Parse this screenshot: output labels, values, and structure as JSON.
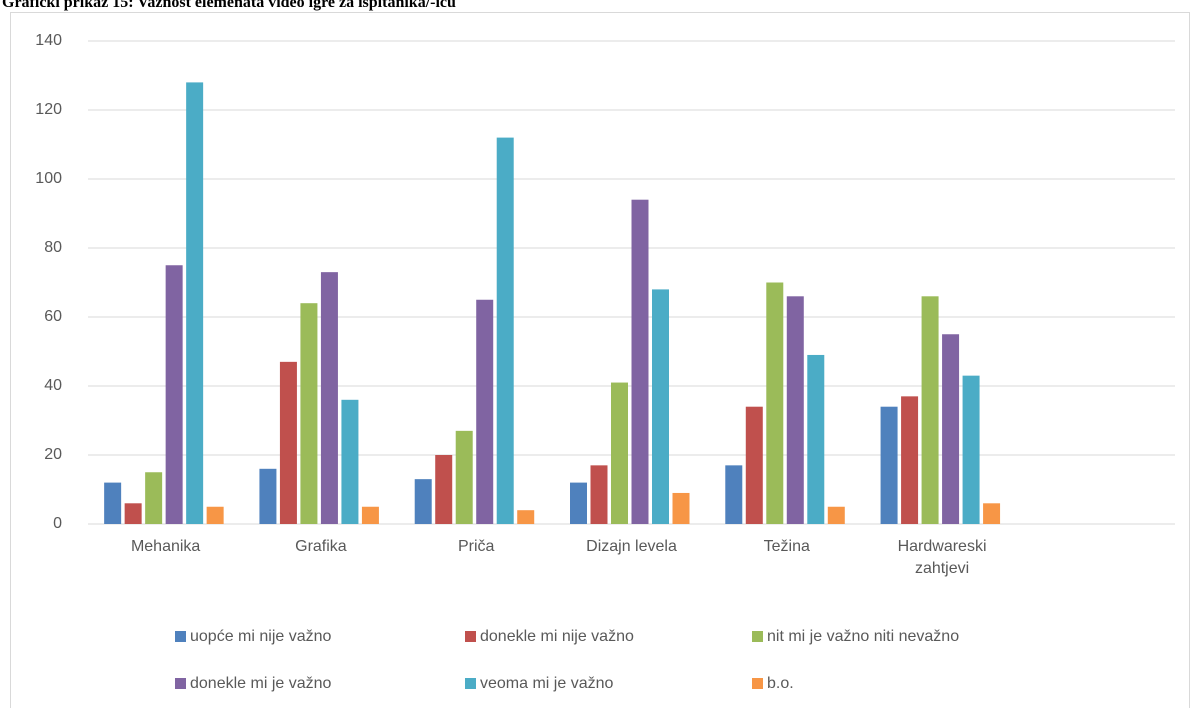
{
  "chart_data": {
    "type": "bar",
    "title": "Grafički prikaz 15: Važnost elemenata video igre za ispitanika/-icu",
    "categories": [
      "Mehanika",
      "Grafika",
      "Priča",
      "Dizajn levela",
      "Težina",
      "Hardwareski zahtjevi",
      null
    ],
    "series": [
      {
        "name": "uopće mi nije važno",
        "color": "#4f81bd",
        "values": [
          12,
          16,
          13,
          12,
          17,
          34,
          null
        ]
      },
      {
        "name": "donekle mi nije važno",
        "color": "#c0504d",
        "values": [
          6,
          47,
          20,
          17,
          34,
          37,
          null
        ]
      },
      {
        "name": "nit mi je važno niti nevažno",
        "color": "#9bbb59",
        "values": [
          15,
          64,
          27,
          41,
          70,
          66,
          null
        ]
      },
      {
        "name": "donekle mi je važno",
        "color": "#8064a2",
        "values": [
          75,
          73,
          65,
          94,
          66,
          55,
          null
        ]
      },
      {
        "name": "veoma mi je važno",
        "color": "#4bacc6",
        "values": [
          128,
          36,
          112,
          68,
          49,
          43,
          null
        ]
      },
      {
        "name": "b.o.",
        "color": "#f79646",
        "values": [
          5,
          5,
          4,
          9,
          5,
          6,
          null
        ]
      }
    ],
    "ylim": [
      0,
      140
    ],
    "yticks": [
      0,
      20,
      40,
      60,
      80,
      100,
      120,
      140
    ],
    "grid": true,
    "legend": "bottom"
  }
}
